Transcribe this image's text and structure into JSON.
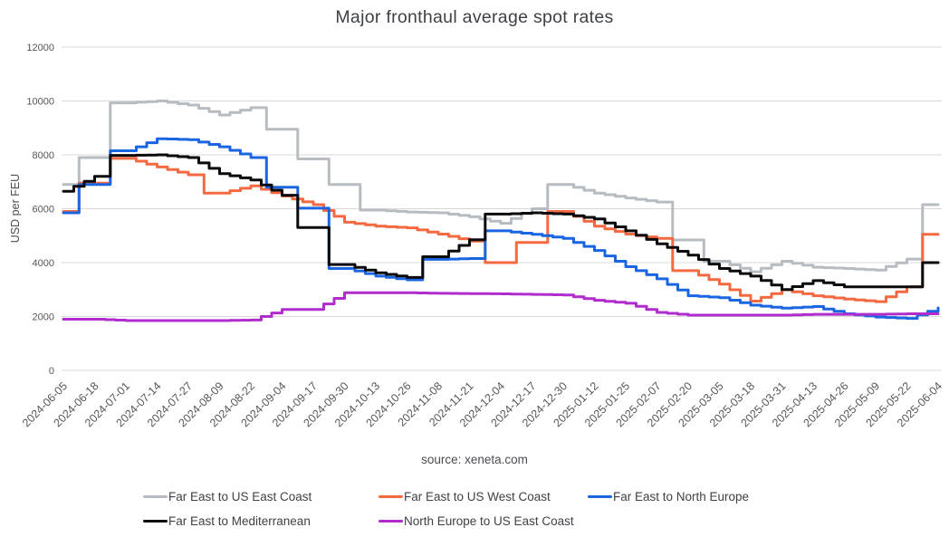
{
  "chart_data": {
    "type": "line",
    "title": "Major fronthaul average spot rates",
    "ylabel": "USD per FEU",
    "xlabel": "",
    "source": "source: xeneta.com",
    "ylim": [
      0,
      12000
    ],
    "ytick_step": 2000,
    "yticks": [
      0,
      2000,
      4000,
      6000,
      8000,
      10000,
      12000
    ],
    "grid": "horizontal",
    "legend_position": "bottom",
    "x": [
      "2024-06-05",
      "2024-06-18",
      "2024-07-01",
      "2024-07-14",
      "2024-07-27",
      "2024-08-09",
      "2024-08-22",
      "2024-09-04",
      "2024-09-17",
      "2024-09-30",
      "2024-10-13",
      "2024-10-26",
      "2024-11-08",
      "2024-11-21",
      "2024-12-04",
      "2024-12-17",
      "2024-12-30",
      "2025-01-12",
      "2025-01-25",
      "2025-02-07",
      "2025-02-20",
      "2025-03-05",
      "2025-03-18",
      "2025-03-31",
      "2025-04-13",
      "2025-04-26",
      "2025-05-09",
      "2025-05-22",
      "2025-06-04"
    ],
    "series": [
      {
        "name": "Far East to US East Coast",
        "color": "#b7bcc2",
        "values": [
          6900,
          7900,
          9930,
          10000,
          9850,
          9480,
          9750,
          8950,
          7850,
          6900,
          5950,
          5880,
          5850,
          5700,
          5460,
          6000,
          6900,
          6580,
          6400,
          6250,
          4840,
          4050,
          3660,
          4050,
          3830,
          3780,
          3720,
          4130,
          6150
        ]
      },
      {
        "name": "Far East to US West Coast",
        "color": "#f4693f",
        "values": [
          5900,
          6950,
          7870,
          7550,
          7260,
          6580,
          6850,
          6470,
          6150,
          5500,
          5350,
          5290,
          5060,
          4800,
          4000,
          4750,
          5900,
          5350,
          5060,
          4900,
          3700,
          3200,
          2570,
          2990,
          2770,
          2650,
          2550,
          3100,
          5050
        ]
      },
      {
        "name": "Far East to North Europe",
        "color": "#1a66e2",
        "values": [
          5850,
          6900,
          8150,
          8600,
          8560,
          8300,
          7900,
          6800,
          6020,
          3780,
          3500,
          3360,
          4120,
          4150,
          5180,
          5050,
          4900,
          4450,
          3850,
          3400,
          2770,
          2700,
          2420,
          2310,
          2370,
          2100,
          1980,
          1930,
          2320
        ]
      },
      {
        "name": "Far East to Mediterranean",
        "color": "#0a0a0c",
        "values": [
          6650,
          7200,
          7980,
          8000,
          7900,
          7300,
          7070,
          6500,
          5300,
          3930,
          3620,
          3450,
          4220,
          4850,
          5800,
          5850,
          5800,
          5620,
          5180,
          4700,
          4280,
          3780,
          3500,
          3000,
          3330,
          3100,
          3100,
          3100,
          4000
        ]
      },
      {
        "name": "North Europe to US East Coast",
        "color": "#b02ccd",
        "values": [
          1900,
          1900,
          1850,
          1850,
          1850,
          1850,
          1870,
          2260,
          2260,
          2880,
          2880,
          2880,
          2860,
          2850,
          2840,
          2820,
          2800,
          2600,
          2490,
          2150,
          2050,
          2050,
          2050,
          2050,
          2080,
          2080,
          2080,
          2100,
          2100
        ]
      }
    ]
  }
}
